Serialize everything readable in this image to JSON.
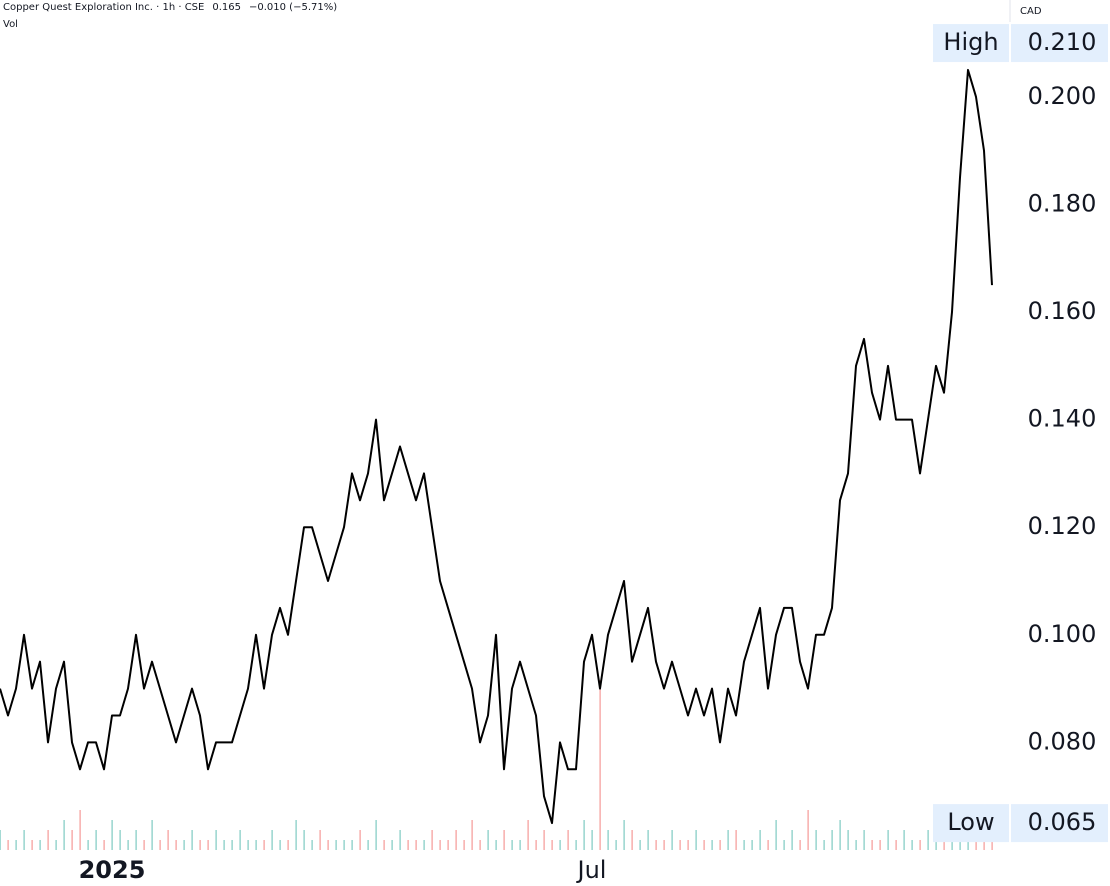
{
  "chart_data": {
    "type": "line",
    "title": "Copper Quest Exploration Inc. · 1h · CSE",
    "last": "0.165",
    "change": "−0.010 (−5.71%)",
    "currency": "CAD",
    "categories": [
      null,
      null,
      null,
      null,
      null,
      null,
      null,
      null,
      null,
      null,
      null,
      null,
      null,
      null,
      "2025",
      null,
      null,
      null,
      null,
      null,
      null,
      null,
      null,
      null,
      null,
      null,
      null,
      null,
      null,
      null,
      null,
      null,
      null,
      null,
      null,
      null,
      null,
      null,
      null,
      null,
      null,
      null,
      null,
      null,
      null,
      null,
      null,
      null,
      null,
      null,
      null,
      null,
      null,
      null,
      null,
      null,
      null,
      null,
      null,
      null,
      null,
      null,
      null,
      null,
      null,
      null,
      null,
      null,
      null,
      null,
      null,
      null,
      null,
      null,
      "Jul",
      null,
      null,
      null,
      null,
      null,
      null,
      null,
      null,
      null,
      null,
      null,
      null,
      null,
      null,
      null,
      null,
      null,
      null,
      null,
      null,
      null,
      null,
      null,
      null,
      null,
      null,
      null,
      null,
      null,
      null,
      null,
      null,
      null,
      null,
      null,
      null,
      null,
      null,
      null,
      null,
      null,
      null,
      null,
      null,
      null,
      null,
      null,
      null,
      null,
      null
    ],
    "series": [
      {
        "color": "#000000",
        "values": [
          0.09,
          0.085,
          0.09,
          0.1,
          0.09,
          0.095,
          0.08,
          0.09,
          0.095,
          0.08,
          0.075,
          0.08,
          0.08,
          0.075,
          0.085,
          0.085,
          0.09,
          0.1,
          0.09,
          0.095,
          0.09,
          0.085,
          0.08,
          0.085,
          0.09,
          0.085,
          0.075,
          0.08,
          0.08,
          0.08,
          0.085,
          0.09,
          0.1,
          0.09,
          0.1,
          0.105,
          0.1,
          0.11,
          0.12,
          0.12,
          0.115,
          0.11,
          0.115,
          0.12,
          0.13,
          0.125,
          0.13,
          0.14,
          0.125,
          0.13,
          0.135,
          0.13,
          0.125,
          0.13,
          0.12,
          0.11,
          0.105,
          0.1,
          0.095,
          0.09,
          0.08,
          0.085,
          0.1,
          0.075,
          0.09,
          0.095,
          0.09,
          0.085,
          0.07,
          0.065,
          0.08,
          0.075,
          0.075,
          0.095,
          0.1,
          0.09,
          0.1,
          0.105,
          0.11,
          0.095,
          0.1,
          0.105,
          0.095,
          0.09,
          0.095,
          0.09,
          0.085,
          0.09,
          0.085,
          0.09,
          0.08,
          0.09,
          0.085,
          0.095,
          0.1,
          0.105,
          0.09,
          0.1,
          0.105,
          0.105,
          0.095,
          0.09,
          0.1,
          0.1,
          0.105,
          0.125,
          0.13,
          0.15,
          0.155,
          0.145,
          0.14,
          0.15,
          0.14,
          0.14,
          0.14,
          0.13,
          0.14,
          0.15,
          0.145,
          0.16,
          0.185,
          0.205,
          0.2,
          0.19,
          0.165
        ]
      }
    ],
    "volume": {
      "name": "Vol",
      "up_color": "#26a69a",
      "down_color": "#ef5350",
      "ylim": [
        0,
        17
      ],
      "values": [
        2,
        1,
        1,
        2,
        1,
        1,
        2,
        1,
        3,
        2,
        4,
        1,
        2,
        1,
        3,
        2,
        1,
        2,
        1,
        3,
        1,
        2,
        1,
        1,
        2,
        1,
        1,
        2,
        1,
        1,
        2,
        1,
        1,
        1,
        2,
        1,
        1,
        3,
        2,
        1,
        2,
        1,
        1,
        1,
        1,
        2,
        1,
        3,
        1,
        1,
        2,
        1,
        1,
        1,
        2,
        1,
        1,
        2,
        1,
        3,
        1,
        2,
        1,
        2,
        1,
        1,
        3,
        1,
        2,
        1,
        1,
        2,
        1,
        3,
        2,
        17,
        2,
        1,
        3,
        2,
        1,
        2,
        1,
        1,
        2,
        1,
        1,
        2,
        1,
        1,
        1,
        2,
        2,
        1,
        1,
        2,
        1,
        3,
        1,
        2,
        1,
        4,
        2,
        1,
        2,
        3,
        2,
        1,
        2,
        1,
        1,
        2,
        1,
        2,
        1,
        1,
        2,
        1,
        1,
        1,
        2,
        1,
        2,
        1,
        1
      ]
    },
    "ylim": [
      0.06,
      0.218
    ],
    "yticks": [
      {
        "value": 0.08,
        "label": "0.080"
      },
      {
        "value": 0.1,
        "label": "0.100"
      },
      {
        "value": 0.12,
        "label": "0.120"
      },
      {
        "value": 0.14,
        "label": "0.140"
      },
      {
        "value": 0.16,
        "label": "0.160"
      },
      {
        "value": 0.18,
        "label": "0.180"
      },
      {
        "value": 0.2,
        "label": "0.200"
      }
    ],
    "high": {
      "label": "High",
      "value": 0.21,
      "value_label": "0.210"
    },
    "low": {
      "label": "Low",
      "value": 0.065,
      "value_label": "0.065"
    }
  }
}
